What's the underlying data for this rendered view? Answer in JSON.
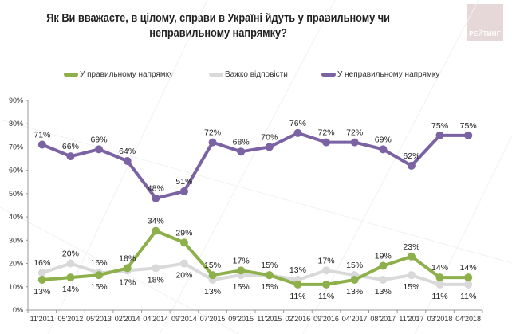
{
  "logo": {
    "text": "РЕЙТИНГ"
  },
  "chart_data": {
    "type": "line",
    "title": "Як Ви вважаєте, в цілому, справи в Україні йдуть у правильному чи неправильному напрямку?",
    "xlabel": "",
    "ylabel": "",
    "ylim": [
      0,
      90
    ],
    "yticks": [
      "0%",
      "10%",
      "20%",
      "30%",
      "40%",
      "50%",
      "60%",
      "70%",
      "80%",
      "90%"
    ],
    "categories": [
      "11'2011",
      "05'2012",
      "05'2013",
      "02'2014",
      "04'2014",
      "09'2014",
      "07'2015",
      "09'2015",
      "11'2015",
      "02'2016",
      "09'2016",
      "04'2017",
      "08'2017",
      "11'2017",
      "03'2018",
      "04'2018"
    ],
    "legend_position": "top",
    "series": [
      {
        "name": "У правильному напрямку",
        "color": "#8db04a",
        "values": [
          13,
          14,
          15,
          18,
          34,
          29,
          15,
          17,
          15,
          11,
          11,
          13,
          19,
          23,
          14,
          14
        ]
      },
      {
        "name": "Важко відповісти",
        "color": "#d9d9d9",
        "values": [
          16,
          20,
          16,
          17,
          18,
          20,
          13,
          15,
          15,
          13,
          17,
          15,
          13,
          15,
          11,
          11
        ]
      },
      {
        "name": "У неправильному напрямку",
        "color": "#7b62a3",
        "values": [
          71,
          66,
          69,
          64,
          48,
          51,
          72,
          68,
          70,
          76,
          72,
          72,
          69,
          62,
          75,
          75
        ]
      }
    ]
  }
}
